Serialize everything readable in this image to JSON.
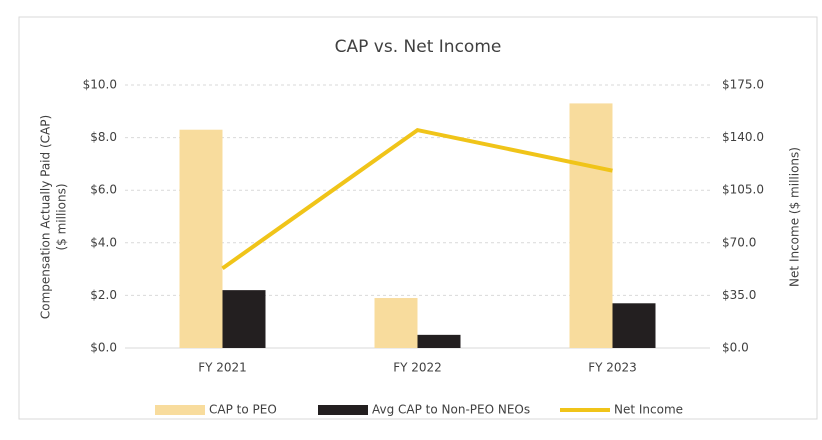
{
  "chart_data": {
    "type": "bar_line",
    "title": "CAP vs. Net Income",
    "ylabel": [
      "Compensation Actually Paid (CAP)",
      "($ millions)"
    ],
    "y2label": "Net Income ($ millions)",
    "categories": [
      "FY 2021",
      "FY 2022",
      "FY 2023"
    ],
    "series": [
      {
        "name": "CAP to PEO",
        "type": "bar",
        "color": "#f8dc9d",
        "values": [
          8.3,
          1.9,
          9.3
        ]
      },
      {
        "name": "Avg CAP to Non-PEO NEOs",
        "type": "bar",
        "color": "#231f20",
        "values": [
          2.2,
          0.5,
          1.7
        ]
      },
      {
        "name": "Net Income",
        "type": "line",
        "axis": "y2",
        "color": "#f0c419",
        "values": [
          53,
          145,
          118
        ]
      }
    ],
    "ylim": [
      0,
      10
    ],
    "yticks": [
      {
        "value": 0,
        "label": "$0.0"
      },
      {
        "value": 2,
        "label": "$2.0"
      },
      {
        "value": 4,
        "label": "$4.0"
      },
      {
        "value": 6,
        "label": "$6.0"
      },
      {
        "value": 8,
        "label": "$8.0"
      },
      {
        "value": 10,
        "label": "$10.0"
      }
    ],
    "y2lim": [
      0,
      175
    ],
    "y2ticks": [
      {
        "value": 0,
        "label": "$0.0"
      },
      {
        "value": 35,
        "label": "$35.0"
      },
      {
        "value": 70,
        "label": "$70.0"
      },
      {
        "value": 105,
        "label": "$105.0"
      },
      {
        "value": 140,
        "label": "$140.0"
      },
      {
        "value": 175,
        "label": "$175.0"
      }
    ],
    "grid": true,
    "legend": "bottom"
  }
}
